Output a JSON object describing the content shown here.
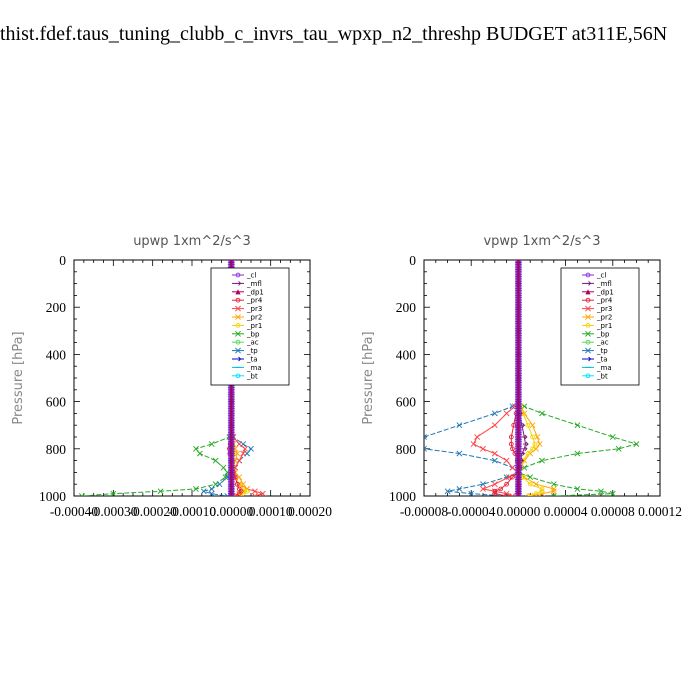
{
  "page_title": "thist.fdef.taus_tuning_clubb_c_invrs_tau_wpxp_n2_threshp  BUDGET at311E,56N",
  "legend_entries": [
    {
      "name": "_cl",
      "color": "#8a2be2",
      "marker": "dot"
    },
    {
      "name": "_mfl",
      "color": "#7a1a7a",
      "marker": "arrow"
    },
    {
      "name": "_dp1",
      "color": "#b0005a",
      "marker": "tri"
    },
    {
      "name": "_pr4",
      "color": "#e8233a",
      "marker": "dot"
    },
    {
      "name": "_pr3",
      "color": "#ff4444",
      "marker": "x"
    },
    {
      "name": "_pr2",
      "color": "#ffa500",
      "marker": "x"
    },
    {
      "name": "_pr1",
      "color": "#f5d200",
      "marker": "dot"
    },
    {
      "name": "_bp",
      "color": "#22aa22",
      "marker": "x"
    },
    {
      "name": "_ac",
      "color": "#55dd55",
      "marker": "dot"
    },
    {
      "name": "_tp",
      "color": "#1f77b4",
      "marker": "x"
    },
    {
      "name": "_ta",
      "color": "#0000cc",
      "marker": "arrow"
    },
    {
      "name": "_ma",
      "color": "#00bcd4",
      "marker": "dash"
    },
    {
      "name": "_bt",
      "color": "#00e5ff",
      "marker": "dot"
    }
  ],
  "chart_data": [
    {
      "type": "line",
      "title": "upwp   1xm^2/s^3",
      "xlabel": "",
      "ylabel": "Pressure [hPa]",
      "xlim": [
        -0.0004,
        0.0002
      ],
      "ylim": [
        1000,
        0
      ],
      "x_tick_labels": [
        "-0.00040",
        "-0.00030",
        "-0.00020",
        "-0.00010",
        "0.00000",
        "0.00010",
        "0.00020"
      ],
      "y_tick_labels": [
        "0",
        "200",
        "400",
        "600",
        "800",
        "1000"
      ],
      "legend_position": "top-right",
      "pressure_levels": [
        0,
        100,
        200,
        300,
        400,
        500,
        600,
        700,
        750,
        780,
        800,
        820,
        850,
        880,
        900,
        920,
        950,
        970,
        980,
        990,
        1000
      ],
      "series": [
        {
          "name": "_bp",
          "values": [
            0,
            0,
            0,
            0,
            0,
            0,
            0,
            0,
            -5e-06,
            -5e-05,
            -9e-05,
            -8e-05,
            -4e-05,
            -2e-05,
            -1e-05,
            -1.5e-05,
            -4e-05,
            -9e-05,
            -0.00018,
            -0.0003,
            -0.00038
          ]
        },
        {
          "name": "_tp",
          "values": [
            0,
            0,
            0,
            0,
            0,
            0,
            0,
            0,
            5e-06,
            3e-05,
            5e-05,
            4e-05,
            2e-05,
            1e-05,
            0,
            -1e-05,
            -3e-05,
            -5e-05,
            -7e-05,
            -5e-05,
            -1e-05
          ]
        },
        {
          "name": "_pr3",
          "values": [
            0,
            0,
            0,
            0,
            0,
            0,
            0,
            0,
            5e-06,
            2e-05,
            3.5e-05,
            3e-05,
            2e-05,
            1e-05,
            5e-06,
            1e-05,
            2e-05,
            4e-05,
            6e-05,
            8e-05,
            6e-05
          ]
        },
        {
          "name": "_pr2",
          "values": [
            0,
            0,
            0,
            0,
            0,
            0,
            0,
            0,
            0,
            5e-06,
            1e-05,
            1.5e-05,
            1e-05,
            5e-06,
            1e-05,
            2e-05,
            3e-05,
            4e-05,
            3e-05,
            2e-05,
            1e-05
          ]
        },
        {
          "name": "_pr1",
          "values": [
            0,
            0,
            0,
            0,
            0,
            0,
            0,
            0,
            0,
            3e-06,
            5e-06,
            5e-06,
            3e-06,
            2e-06,
            5e-06,
            1e-05,
            2e-05,
            3e-05,
            4e-05,
            3e-05,
            2e-05
          ]
        },
        {
          "name": "_pr4",
          "values": [
            0,
            0,
            0,
            0,
            0,
            0,
            0,
            0,
            0,
            -3e-06,
            -5e-06,
            -4e-06,
            -2e-06,
            0,
            5e-06,
            1e-05,
            1.5e-05,
            2e-05,
            2.5e-05,
            2e-05,
            1e-05
          ]
        },
        {
          "name": "_mfl",
          "values": [
            0,
            0,
            0,
            0,
            0,
            0,
            0,
            0,
            0,
            0,
            0,
            0,
            0,
            0,
            0,
            0,
            0,
            0,
            0,
            0,
            0
          ]
        },
        {
          "name": "_dp1",
          "values": [
            0,
            0,
            0,
            0,
            0,
            0,
            0,
            0,
            0,
            0,
            0,
            0,
            0,
            0,
            0,
            0,
            0,
            0,
            0,
            0,
            0
          ]
        }
      ]
    },
    {
      "type": "line",
      "title": "vpwp   1xm^2/s^3",
      "xlabel": "",
      "ylabel": "Pressure [hPa]",
      "xlim": [
        -8e-05,
        0.00012
      ],
      "ylim": [
        1000,
        0
      ],
      "x_tick_labels": [
        "-0.00008",
        "-0.00004",
        "0.00000",
        "0.00004",
        "0.00008",
        "0.00012"
      ],
      "y_tick_labels": [
        "0",
        "200",
        "400",
        "600",
        "800",
        "1000"
      ],
      "legend_position": "top-right",
      "pressure_levels": [
        0,
        100,
        200,
        300,
        400,
        500,
        600,
        620,
        650,
        700,
        750,
        780,
        800,
        820,
        850,
        880,
        900,
        920,
        950,
        970,
        980,
        990,
        1000
      ],
      "series": [
        {
          "name": "_bp",
          "values": [
            0,
            0,
            0,
            0,
            0,
            0,
            0,
            5e-06,
            2e-05,
            5e-05,
            8e-05,
            0.0001,
            8.5e-05,
            5e-05,
            2e-05,
            5e-06,
            0,
            1e-05,
            3e-05,
            5e-05,
            7e-05,
            8e-05,
            3e-05
          ]
        },
        {
          "name": "_tp",
          "values": [
            0,
            0,
            0,
            0,
            0,
            0,
            0,
            -5e-06,
            -2e-05,
            -5e-05,
            -8e-05,
            -9e-05,
            -8e-05,
            -5e-05,
            -2e-05,
            -5e-06,
            0,
            -1e-05,
            -3e-05,
            -5e-05,
            -6e-05,
            -4e-05,
            -1e-05
          ]
        },
        {
          "name": "_pr3",
          "values": [
            0,
            0,
            0,
            0,
            0,
            0,
            0,
            -3e-06,
            -1e-05,
            -2e-05,
            -3.5e-05,
            -3.8e-05,
            -3e-05,
            -2e-05,
            -1e-05,
            -5e-06,
            0,
            -8e-06,
            -2e-05,
            -3e-05,
            -2e-05,
            -1e-05,
            -5e-06
          ]
        },
        {
          "name": "_pr2",
          "values": [
            0,
            0,
            0,
            0,
            0,
            0,
            0,
            2e-06,
            5e-06,
            1.2e-05,
            1.6e-05,
            1.8e-05,
            1.5e-05,
            1e-05,
            5e-06,
            2e-06,
            0,
            5e-06,
            1.5e-05,
            3e-05,
            3e-05,
            2e-05,
            1e-05
          ]
        },
        {
          "name": "_pr1",
          "values": [
            0,
            0,
            0,
            0,
            0,
            0,
            0,
            1e-06,
            4e-06,
            8e-06,
            1.2e-05,
            1.4e-05,
            1.2e-05,
            8e-06,
            4e-06,
            1e-06,
            0,
            4e-06,
            1e-05,
            2e-05,
            2e-05,
            1.5e-05,
            8e-06
          ]
        },
        {
          "name": "_pr4",
          "values": [
            0,
            0,
            0,
            0,
            0,
            0,
            0,
            0,
            -2e-06,
            -4e-06,
            -6e-06,
            -6e-06,
            -5e-06,
            -3e-06,
            -1e-06,
            0,
            0,
            -5e-06,
            -1e-05,
            -1.5e-05,
            -2e-05,
            -2e-05,
            -1e-05
          ]
        },
        {
          "name": "_mfl",
          "values": [
            0,
            0,
            0,
            0,
            0,
            0,
            0,
            0,
            1e-06,
            3e-06,
            5e-06,
            6e-06,
            5e-06,
            3e-06,
            2e-06,
            1e-06,
            0,
            0,
            0,
            0,
            0,
            0,
            0
          ]
        },
        {
          "name": "_dp1",
          "values": [
            0,
            0,
            0,
            0,
            0,
            0,
            0,
            0,
            0,
            0,
            0,
            0,
            0,
            0,
            0,
            0,
            0,
            0,
            0,
            0,
            0,
            0,
            0
          ]
        }
      ]
    }
  ]
}
